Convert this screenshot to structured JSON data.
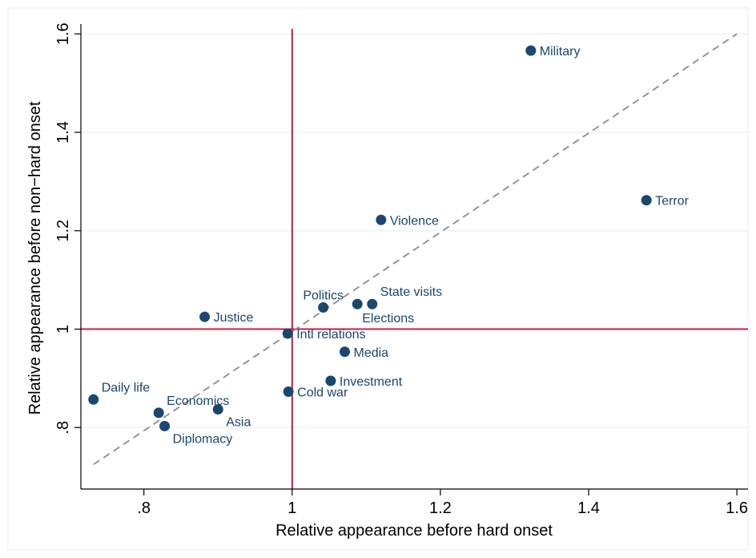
{
  "chart_data": {
    "type": "scatter",
    "xlabel": "Relative appearance before hard onset",
    "ylabel": "Relative appearance before non−hard onset",
    "xlim": [
      0.715,
      1.615
    ],
    "ylim": [
      0.675,
      1.62
    ],
    "x_ticks": [
      {
        "value": 0.8,
        "label": ".8"
      },
      {
        "value": 1.0,
        "label": "1"
      },
      {
        "value": 1.2,
        "label": "1.2"
      },
      {
        "value": 1.4,
        "label": "1.4"
      },
      {
        "value": 1.6,
        "label": "1.6"
      }
    ],
    "y_ticks": [
      {
        "value": 0.8,
        "label": ".8"
      },
      {
        "value": 1.0,
        "label": "1"
      },
      {
        "value": 1.2,
        "label": "1.2"
      },
      {
        "value": 1.4,
        "label": "1.4"
      },
      {
        "value": 1.6,
        "label": "1.6"
      }
    ],
    "grid": "horizontal",
    "points": [
      {
        "label": "Military",
        "x": 1.322,
        "y": 1.566,
        "pos": "right"
      },
      {
        "label": "Terror",
        "x": 1.478,
        "y": 1.262,
        "pos": "right"
      },
      {
        "label": "Violence",
        "x": 1.12,
        "y": 1.222,
        "pos": "right"
      },
      {
        "label": "Politics",
        "x": 1.042,
        "y": 1.044,
        "pos": "above"
      },
      {
        "label": "State visits",
        "x": 1.108,
        "y": 1.051,
        "pos": "above-right"
      },
      {
        "label": "Elections",
        "x": 1.088,
        "y": 1.051,
        "pos": "below"
      },
      {
        "label": "Justice",
        "x": 0.882,
        "y": 1.025,
        "pos": "right"
      },
      {
        "label": "Intl relations",
        "x": 0.994,
        "y": 0.991,
        "pos": "right"
      },
      {
        "label": "Media",
        "x": 1.071,
        "y": 0.954,
        "pos": "right"
      },
      {
        "label": "Investment",
        "x": 1.052,
        "y": 0.895,
        "pos": "right"
      },
      {
        "label": "Cold war",
        "x": 0.995,
        "y": 0.873,
        "pos": "right"
      },
      {
        "label": "Daily life",
        "x": 0.732,
        "y": 0.857,
        "pos": "above-right"
      },
      {
        "label": "Economics",
        "x": 0.82,
        "y": 0.83,
        "pos": "above-right"
      },
      {
        "label": "Asia",
        "x": 0.9,
        "y": 0.837,
        "pos": "below-right"
      },
      {
        "label": "Diplomacy",
        "x": 0.828,
        "y": 0.803,
        "pos": "below-right"
      }
    ],
    "reference_lines": {
      "x": 1.0,
      "y": 1.0,
      "color": "#c41e45"
    },
    "diagonal": {
      "from": [
        0.732,
        0.725
      ],
      "to": [
        1.6,
        1.6
      ],
      "style": "dashed",
      "color": "#8c8c8c"
    },
    "colors": {
      "point": "#1a476f",
      "label": "#1a476f",
      "grid": "#eaf2f3",
      "axis": "#000000"
    }
  }
}
